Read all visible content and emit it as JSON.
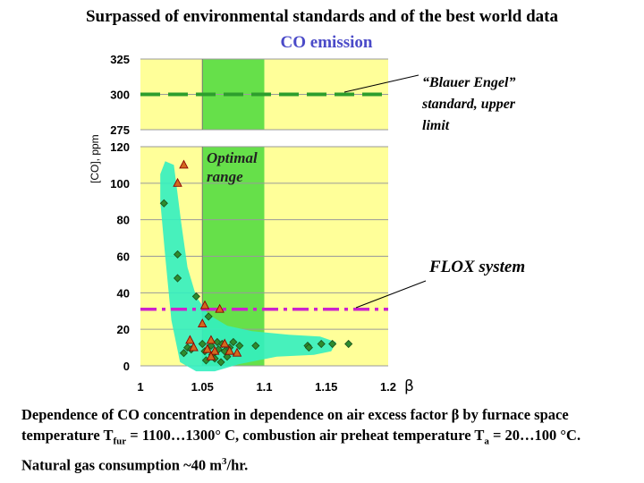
{
  "title": "Surpassed of environmental standards and of the best world data",
  "subtitle": "CO emission",
  "caption": {
    "part1": "Dependence of  CO concentration in dependence on air excess factor  β  by furnace space temperature T",
    "sub1": "fur",
    "part2": " = 1100…1300° C, combustion air preheat temperature T",
    "sub2": "a",
    "part3": " = 20…100 °C. Natural gas consumption  ~40 m",
    "sup1": "3",
    "part4": "/hr."
  },
  "chart_data": {
    "type": "scatter",
    "ylabel": "[CO], ppm",
    "xlabel": "β",
    "xlim": [
      1,
      1.2
    ],
    "x_ticks": [
      "1",
      "1.05",
      "1.1",
      "1.15",
      "1.2"
    ],
    "y_lower_ticks": [
      "0",
      "20",
      "40",
      "60",
      "80",
      "100",
      "120"
    ],
    "y_upper_ticks": [
      "275",
      "300",
      "325"
    ],
    "colors": {
      "background": "#ffff99",
      "optimal_band": "#66e04a",
      "trend_band": "#33f0c0",
      "blauer_line": "#2d9e2d",
      "flox_line": "#cc22cc"
    },
    "optimal_range": {
      "label_line1": "Optimal",
      "label_line2": "range",
      "x_from": 1.05,
      "x_to": 1.1
    },
    "reference_lines": [
      {
        "name": "blauer",
        "value": 300,
        "label_lines": [
          "“Blauer Engel”",
          "standard, upper",
          "limit"
        ]
      },
      {
        "name": "flox",
        "value": 31,
        "label_lines": [
          "FLOX system"
        ]
      }
    ],
    "series": [
      {
        "marker": "diamond",
        "points": [
          [
            1.019,
            89
          ],
          [
            1.03,
            61
          ],
          [
            1.03,
            48
          ],
          [
            1.035,
            7
          ],
          [
            1.038,
            10
          ],
          [
            1.041,
            9
          ],
          [
            1.045,
            38
          ],
          [
            1.05,
            12
          ],
          [
            1.052,
            8
          ],
          [
            1.053,
            3
          ],
          [
            1.055,
            27
          ],
          [
            1.057,
            11
          ],
          [
            1.058,
            6
          ],
          [
            1.06,
            4
          ],
          [
            1.062,
            13
          ],
          [
            1.063,
            9
          ],
          [
            1.065,
            2
          ],
          [
            1.066,
            12
          ],
          [
            1.068,
            8
          ],
          [
            1.07,
            5
          ],
          [
            1.072,
            10
          ],
          [
            1.075,
            13
          ],
          [
            1.08,
            11
          ],
          [
            1.093,
            11
          ],
          [
            1.135,
            11
          ],
          [
            1.136,
            10
          ],
          [
            1.146,
            12
          ],
          [
            1.155,
            12
          ],
          [
            1.168,
            12
          ]
        ]
      },
      {
        "marker": "triangle",
        "points": [
          [
            1.035,
            110
          ],
          [
            1.03,
            100
          ],
          [
            1.04,
            14
          ],
          [
            1.043,
            10
          ],
          [
            1.052,
            33
          ],
          [
            1.054,
            9
          ],
          [
            1.057,
            14
          ],
          [
            1.06,
            8
          ],
          [
            1.064,
            31
          ],
          [
            1.068,
            12
          ],
          [
            1.072,
            8
          ],
          [
            1.078,
            7
          ],
          [
            1.05,
            23
          ],
          [
            1.057,
            5
          ]
        ]
      }
    ]
  }
}
